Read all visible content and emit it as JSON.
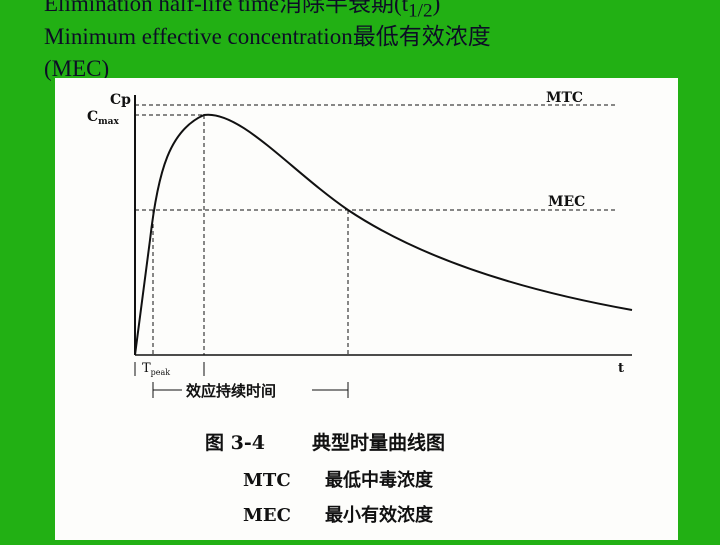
{
  "slide": {
    "lines": [
      {
        "text": "Elimination half-life time消除半衰期(t",
        "subscript": "1/2",
        "suffix": ")"
      },
      {
        "text": "Minimum effective concentration最低有效浓度"
      },
      {
        "text": "(MEC)"
      }
    ],
    "figure": {
      "y_label": "Cp",
      "cmax": {
        "text": "C",
        "subscript": "max"
      },
      "mtc_label": "MTC",
      "mec_label": "MEC",
      "x_label": "t",
      "tpeak": {
        "text": "T",
        "subscript": "peak"
      },
      "duration_label": "效应持续时间",
      "caption_number": "图 3-4",
      "caption_title": "典型时量曲线图",
      "legend": [
        {
          "abbr": "MTC",
          "meaning": "最低中毒浓度"
        },
        {
          "abbr": "MEC",
          "meaning": "最小有效浓度"
        }
      ]
    }
  }
}
